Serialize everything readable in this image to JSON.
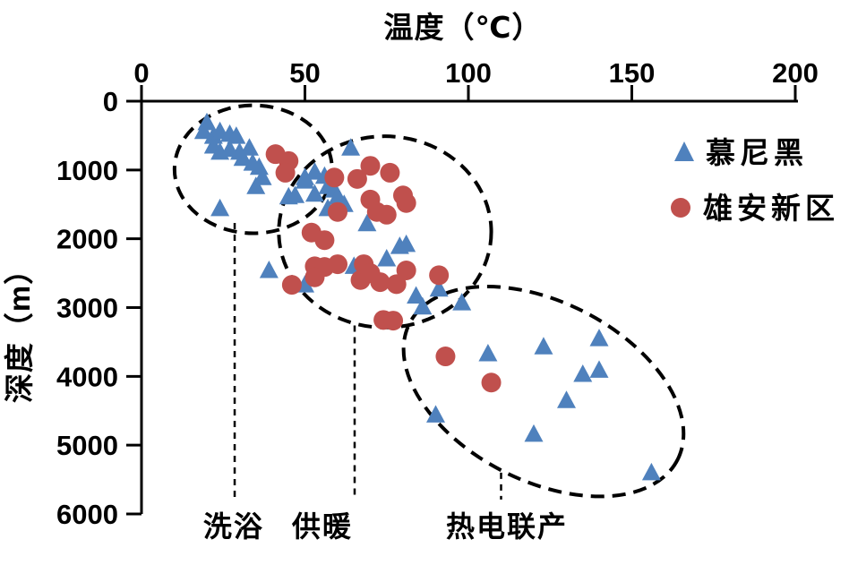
{
  "chart_data": {
    "type": "scatter",
    "title": "",
    "xlabel": "温度（℃）",
    "ylabel": "深度（m）",
    "x_axis": {
      "min": 0,
      "max": 200,
      "ticks": [
        0,
        50,
        100,
        150,
        200
      ],
      "position": "top"
    },
    "y_axis": {
      "min": 0,
      "max": 6000,
      "ticks": [
        0,
        1000,
        2000,
        3000,
        4000,
        5000,
        6000
      ],
      "inverted": true
    },
    "grid": false,
    "legend": {
      "position": "top-right"
    },
    "series": [
      {
        "name": "慕尼黑",
        "marker": "triangle",
        "color": "#4f81bd",
        "points": [
          [
            20,
            310
          ],
          [
            19,
            440
          ],
          [
            22,
            510
          ],
          [
            24,
            440
          ],
          [
            27,
            480
          ],
          [
            29,
            510
          ],
          [
            22,
            650
          ],
          [
            24,
            740
          ],
          [
            27,
            700
          ],
          [
            30,
            740
          ],
          [
            33,
            680
          ],
          [
            31,
            830
          ],
          [
            34,
            900
          ],
          [
            36,
            960
          ],
          [
            37,
            1110
          ],
          [
            35,
            1240
          ],
          [
            24,
            1560
          ],
          [
            45,
            1390
          ],
          [
            50,
            1110
          ],
          [
            53,
            1030
          ],
          [
            57,
            1240
          ],
          [
            59,
            1290
          ],
          [
            64,
            680
          ],
          [
            50,
            1160
          ],
          [
            56,
            1090
          ],
          [
            53,
            1350
          ],
          [
            47,
            1370
          ],
          [
            60,
            1390
          ],
          [
            57,
            1560
          ],
          [
            62,
            1500
          ],
          [
            69,
            1780
          ],
          [
            79,
            2110
          ],
          [
            39,
            2460
          ],
          [
            50,
            2670
          ],
          [
            65,
            2400
          ],
          [
            75,
            2290
          ],
          [
            81,
            2080
          ],
          [
            84,
            2830
          ],
          [
            86,
            2990
          ],
          [
            91,
            2730
          ],
          [
            98,
            2930
          ],
          [
            106,
            3670
          ],
          [
            123,
            3570
          ],
          [
            140,
            3450
          ],
          [
            135,
            3970
          ],
          [
            140,
            3910
          ],
          [
            130,
            4350
          ],
          [
            120,
            4840
          ],
          [
            90,
            4560
          ],
          [
            156,
            5400
          ]
        ]
      },
      {
        "name": "雄安新区",
        "marker": "circle",
        "color": "#c0504d",
        "points": [
          [
            41,
            770
          ],
          [
            45,
            870
          ],
          [
            44,
            1040
          ],
          [
            59,
            1110
          ],
          [
            66,
            1130
          ],
          [
            70,
            940
          ],
          [
            76,
            1040
          ],
          [
            70,
            1430
          ],
          [
            72,
            1610
          ],
          [
            75,
            1650
          ],
          [
            80,
            1370
          ],
          [
            81,
            1480
          ],
          [
            60,
            1610
          ],
          [
            52,
            1910
          ],
          [
            56,
            2020
          ],
          [
            46,
            2670
          ],
          [
            53,
            2400
          ],
          [
            56,
            2410
          ],
          [
            60,
            2370
          ],
          [
            68,
            2370
          ],
          [
            67,
            2600
          ],
          [
            53,
            2560
          ],
          [
            70,
            2500
          ],
          [
            73,
            2630
          ],
          [
            78,
            2660
          ],
          [
            81,
            2460
          ],
          [
            91,
            2530
          ],
          [
            74,
            3180
          ],
          [
            77,
            3190
          ],
          [
            93,
            3710
          ],
          [
            107,
            4090
          ]
        ]
      }
    ],
    "annotations": {
      "ellipses": [
        {
          "label": "洗浴",
          "center_c": 34.2,
          "center_m": 990,
          "rx_c": 24.1,
          "ry_m": 930,
          "rotation_deg": 0
        },
        {
          "label": "供暖",
          "center_c": 74.5,
          "center_m": 1900,
          "rx_c": 32.5,
          "ry_m": 1390,
          "rotation_deg": 0
        },
        {
          "label": "热电联产",
          "center_c": 123,
          "center_m": 4220,
          "rx_c": 46,
          "ry_m": 1300,
          "rotation_deg": 27
        }
      ],
      "leader_lines": [
        {
          "x_c": 28.5,
          "from_m": 1770,
          "to_m": 5790
        },
        {
          "x_c": 65.2,
          "from_m": 3260,
          "to_m": 5790
        },
        {
          "x_c": 110,
          "from_m": 5400,
          "to_m": 5790
        }
      ],
      "labels": [
        {
          "text": "洗浴",
          "x_c": 28.2,
          "y_m": 6180
        },
        {
          "text": "供暖",
          "x_c": 55.3,
          "y_m": 6180
        },
        {
          "text": "热电联产",
          "x_c": 111.8,
          "y_m": 6180
        }
      ]
    }
  },
  "colors": {
    "munich": "#4f81bd",
    "xiongan": "#c0504d",
    "axis": "#000000",
    "background": "#ffffff"
  }
}
